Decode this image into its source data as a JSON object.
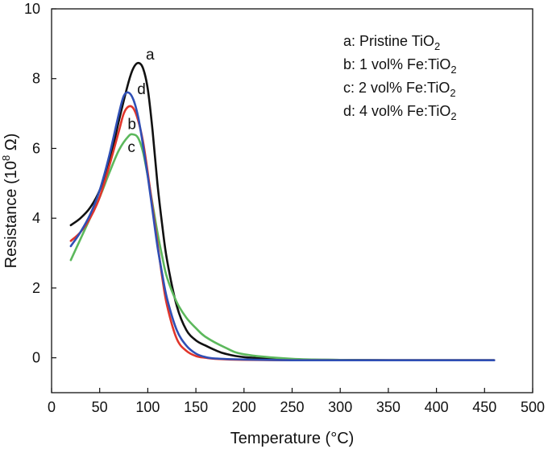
{
  "chart_data": {
    "type": "line",
    "title": "",
    "xlabel": "Temperature (°C)",
    "ylabel_main": "Resistance (10",
    "ylabel_sup": "8",
    "ylabel_tail": " Ω)",
    "xlim": [
      0,
      500
    ],
    "ylim": [
      -1,
      10
    ],
    "xticks": [
      0,
      50,
      100,
      150,
      200,
      250,
      300,
      350,
      400,
      450,
      500
    ],
    "yticks": [
      0,
      2,
      4,
      6,
      8,
      10
    ],
    "grid": false,
    "legend_position": "top-right",
    "legend": [
      {
        "key": "a",
        "prefix": "a: Pristine TiO",
        "sub": "2"
      },
      {
        "key": "b",
        "prefix": "b: 1 vol% Fe:TiO",
        "sub": "2"
      },
      {
        "key": "c",
        "prefix": "c: 2 vol% Fe:TiO",
        "sub": "2"
      },
      {
        "key": "d",
        "prefix": "d: 4 vol% Fe:TiO",
        "sub": "2"
      }
    ],
    "series": [
      {
        "name": "a",
        "label": "a",
        "label_at": [
          98,
          8.55
        ],
        "color": "#111111",
        "x": [
          20,
          30,
          40,
          50,
          60,
          70,
          80,
          85,
          90,
          95,
          100,
          105,
          110,
          115,
          120,
          130,
          140,
          150,
          160,
          170,
          180,
          200,
          250,
          300,
          350,
          400,
          460
        ],
        "y": [
          3.8,
          4.0,
          4.3,
          4.8,
          5.6,
          6.8,
          7.9,
          8.3,
          8.45,
          8.3,
          7.7,
          6.5,
          5.0,
          3.8,
          2.8,
          1.5,
          0.8,
          0.5,
          0.35,
          0.22,
          0.12,
          0.02,
          -0.05,
          -0.06,
          -0.07,
          -0.07,
          -0.07
        ]
      },
      {
        "name": "b",
        "label": "b",
        "label_at": [
          79,
          6.55
        ],
        "color": "#e0352b",
        "x": [
          20,
          30,
          40,
          50,
          60,
          70,
          75,
          80,
          85,
          90,
          95,
          100,
          105,
          110,
          115,
          120,
          130,
          140,
          150,
          160,
          170,
          200,
          250,
          300,
          350,
          400,
          460
        ],
        "y": [
          3.35,
          3.6,
          4.0,
          4.6,
          5.5,
          6.5,
          7.0,
          7.2,
          7.15,
          6.8,
          6.2,
          5.3,
          4.3,
          3.3,
          2.3,
          1.5,
          0.55,
          0.2,
          0.05,
          0.0,
          -0.03,
          -0.06,
          -0.07,
          -0.07,
          -0.07,
          -0.07,
          -0.07
        ]
      },
      {
        "name": "c",
        "label": "c",
        "label_at": [
          79,
          5.9
        ],
        "color": "#5cb85c",
        "x": [
          20,
          30,
          40,
          50,
          60,
          70,
          80,
          85,
          90,
          95,
          100,
          105,
          110,
          115,
          120,
          130,
          140,
          150,
          160,
          180,
          200,
          250,
          300,
          350,
          400,
          460
        ],
        "y": [
          2.8,
          3.4,
          4.0,
          4.6,
          5.3,
          5.95,
          6.35,
          6.4,
          6.3,
          5.9,
          5.2,
          4.4,
          3.6,
          2.9,
          2.3,
          1.6,
          1.15,
          0.85,
          0.6,
          0.3,
          0.1,
          -0.03,
          -0.06,
          -0.07,
          -0.07,
          -0.07
        ]
      },
      {
        "name": "d",
        "label": "d",
        "label_at": [
          89,
          7.55
        ],
        "color": "#2f4fb5",
        "x": [
          20,
          30,
          40,
          50,
          60,
          70,
          75,
          80,
          85,
          90,
          95,
          100,
          105,
          110,
          115,
          120,
          130,
          140,
          150,
          160,
          170,
          200,
          250,
          300,
          350,
          400,
          460
        ],
        "y": [
          3.2,
          3.6,
          4.1,
          4.8,
          5.8,
          7.0,
          7.5,
          7.6,
          7.4,
          6.9,
          6.1,
          5.2,
          4.2,
          3.2,
          2.4,
          1.7,
          0.8,
          0.35,
          0.12,
          0.02,
          -0.02,
          -0.05,
          -0.07,
          -0.07,
          -0.07,
          -0.07,
          -0.07
        ]
      }
    ]
  }
}
